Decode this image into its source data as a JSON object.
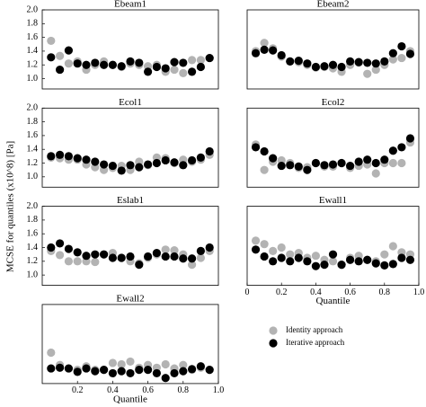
{
  "ylabel": "MCSE for quantiles (x10^8) [Pa]",
  "chart_data": [
    {
      "type": "scatter",
      "title": "Ebeam1",
      "x": [
        0.05,
        0.1,
        0.15,
        0.2,
        0.25,
        0.3,
        0.35,
        0.4,
        0.45,
        0.5,
        0.55,
        0.6,
        0.65,
        0.7,
        0.75,
        0.8,
        0.85,
        0.9,
        0.95
      ],
      "series": [
        {
          "name": "Identity approach",
          "color": "#b3b3b3",
          "values": [
            1.55,
            1.33,
            1.22,
            1.25,
            1.13,
            1.2,
            1.25,
            1.2,
            1.17,
            1.22,
            1.2,
            1.18,
            1.2,
            1.1,
            1.13,
            1.08,
            1.27,
            1.27,
            1.3
          ]
        },
        {
          "name": "Iterative approach",
          "color": "#000000",
          "values": [
            1.31,
            1.13,
            1.41,
            1.22,
            1.2,
            1.23,
            1.2,
            1.2,
            1.18,
            1.25,
            1.23,
            1.1,
            1.17,
            1.15,
            1.24,
            1.23,
            1.1,
            1.17,
            1.3
          ]
        }
      ],
      "xlim": [
        0,
        1.0
      ],
      "ylim": [
        0.85,
        2.0
      ],
      "yticks": [
        {
          "value": 1,
          "label": "1.0"
        },
        1.2,
        1.4,
        1.6,
        1.8,
        {
          "value": 2,
          "label": "2.0"
        }
      ]
    },
    {
      "type": "scatter",
      "title": "Ebeam2",
      "x": [
        0.05,
        0.1,
        0.15,
        0.2,
        0.25,
        0.3,
        0.35,
        0.4,
        0.45,
        0.5,
        0.55,
        0.6,
        0.65,
        0.7,
        0.75,
        0.8,
        0.85,
        0.9,
        0.95
      ],
      "series": [
        {
          "name": "Identity approach",
          "color": "#b3b3b3",
          "values": [
            1.4,
            1.52,
            1.44,
            1.32,
            1.25,
            1.24,
            1.2,
            1.16,
            1.17,
            1.15,
            1.1,
            1.2,
            1.23,
            1.07,
            1.13,
            1.2,
            1.28,
            1.3,
            1.4
          ]
        },
        {
          "name": "Iterative approach",
          "color": "#000000",
          "values": [
            1.37,
            1.42,
            1.41,
            1.34,
            1.25,
            1.26,
            1.22,
            1.17,
            1.18,
            1.2,
            1.17,
            1.25,
            1.24,
            1.23,
            1.22,
            1.25,
            1.37,
            1.47,
            1.36
          ]
        }
      ],
      "xlim": [
        0,
        1.0
      ],
      "ylim": [
        0.85,
        2.0
      ]
    },
    {
      "type": "scatter",
      "title": "Ecol1",
      "x": [
        0.05,
        0.1,
        0.15,
        0.2,
        0.25,
        0.3,
        0.35,
        0.4,
        0.45,
        0.5,
        0.55,
        0.6,
        0.65,
        0.7,
        0.75,
        0.8,
        0.85,
        0.9,
        0.95
      ],
      "series": [
        {
          "name": "Identity approach",
          "color": "#b3b3b3",
          "values": [
            1.28,
            1.27,
            1.25,
            1.25,
            1.18,
            1.14,
            1.1,
            1.13,
            1.16,
            1.1,
            1.22,
            1.17,
            1.28,
            1.27,
            1.2,
            1.25,
            1.22,
            1.25,
            1.32
          ]
        },
        {
          "name": "Iterative approach",
          "color": "#000000",
          "values": [
            1.3,
            1.32,
            1.3,
            1.27,
            1.25,
            1.22,
            1.18,
            1.16,
            1.09,
            1.17,
            1.14,
            1.18,
            1.2,
            1.24,
            1.21,
            1.17,
            1.24,
            1.28,
            1.37
          ]
        }
      ],
      "xlim": [
        0,
        1.0
      ],
      "ylim": [
        0.85,
        2.0
      ],
      "yticks": [
        {
          "value": 1,
          "label": "1.0"
        },
        1.2,
        1.4,
        1.6,
        1.8,
        {
          "value": 2,
          "label": "2.0"
        }
      ]
    },
    {
      "type": "scatter",
      "title": "Ecol2",
      "x": [
        0.05,
        0.1,
        0.15,
        0.2,
        0.25,
        0.3,
        0.35,
        0.4,
        0.45,
        0.5,
        0.55,
        0.6,
        0.65,
        0.7,
        0.75,
        0.8,
        0.85,
        0.9,
        0.95
      ],
      "series": [
        {
          "name": "Identity approach",
          "color": "#b3b3b3",
          "values": [
            1.47,
            1.1,
            1.22,
            1.24,
            1.2,
            1.13,
            1.14,
            1.2,
            1.15,
            1.15,
            1.2,
            1.13,
            1.16,
            1.18,
            1.05,
            1.2,
            1.2,
            1.2,
            1.5
          ]
        },
        {
          "name": "Iterative approach",
          "color": "#000000",
          "values": [
            1.43,
            1.37,
            1.27,
            1.16,
            1.17,
            1.15,
            1.1,
            1.2,
            1.17,
            1.18,
            1.2,
            1.16,
            1.22,
            1.25,
            1.2,
            1.25,
            1.38,
            1.43,
            1.56
          ]
        }
      ],
      "xlim": [
        0,
        1.0
      ],
      "ylim": [
        0.85,
        2.0
      ]
    },
    {
      "type": "scatter",
      "title": "Eslab1",
      "x": [
        0.05,
        0.1,
        0.15,
        0.2,
        0.25,
        0.3,
        0.35,
        0.4,
        0.45,
        0.5,
        0.55,
        0.6,
        0.65,
        0.7,
        0.75,
        0.8,
        0.85,
        0.9,
        0.95
      ],
      "series": [
        {
          "name": "Identity approach",
          "color": "#b3b3b3",
          "values": [
            1.35,
            1.29,
            1.2,
            1.2,
            1.2,
            1.19,
            1.3,
            1.32,
            1.25,
            1.2,
            1.17,
            1.25,
            1.3,
            1.37,
            1.36,
            1.3,
            1.15,
            1.25,
            1.35
          ]
        },
        {
          "name": "Iterative approach",
          "color": "#000000",
          "values": [
            1.4,
            1.46,
            1.38,
            1.33,
            1.28,
            1.3,
            1.3,
            1.25,
            1.25,
            1.27,
            1.15,
            1.27,
            1.32,
            1.27,
            1.27,
            1.24,
            1.24,
            1.35,
            1.4
          ]
        }
      ],
      "xlim": [
        0,
        1.0
      ],
      "ylim": [
        0.85,
        2.0
      ],
      "yticks": [
        {
          "value": 1,
          "label": "1.0"
        },
        1.2,
        1.4,
        1.6,
        1.8,
        {
          "value": 2,
          "label": "2.0"
        }
      ]
    },
    {
      "type": "scatter",
      "title": "Ewall1",
      "xlabel": "Quantile",
      "x": [
        0.05,
        0.1,
        0.15,
        0.2,
        0.25,
        0.3,
        0.35,
        0.4,
        0.45,
        0.5,
        0.55,
        0.6,
        0.65,
        0.7,
        0.75,
        0.8,
        0.85,
        0.9,
        0.95
      ],
      "series": [
        {
          "name": "Identity approach",
          "color": "#b3b3b3",
          "values": [
            1.5,
            1.45,
            1.35,
            1.4,
            1.3,
            1.32,
            1.25,
            1.28,
            1.22,
            1.2,
            1.15,
            1.25,
            1.28,
            1.22,
            1.2,
            1.3,
            1.42,
            1.33,
            1.3
          ]
        },
        {
          "name": "Iterative approach",
          "color": "#000000",
          "values": [
            1.37,
            1.27,
            1.2,
            1.25,
            1.2,
            1.25,
            1.2,
            1.13,
            1.15,
            1.3,
            1.15,
            1.22,
            1.2,
            1.22,
            1.17,
            1.14,
            1.16,
            1.25,
            1.22
          ]
        }
      ],
      "xlim": [
        0,
        1.0
      ],
      "ylim": [
        0.85,
        2.0
      ],
      "xticks": [
        0,
        0.2,
        0.4,
        0.6,
        0.8,
        {
          "value": 1,
          "label": "1.0"
        }
      ]
    },
    {
      "type": "scatter",
      "title": "Ewall2",
      "xlabel": "Quantile",
      "x": [
        0.05,
        0.1,
        0.15,
        0.2,
        0.25,
        0.3,
        0.35,
        0.4,
        0.45,
        0.5,
        0.55,
        0.6,
        0.65,
        0.7,
        0.75,
        0.8,
        0.85,
        0.9,
        0.95
      ],
      "series": [
        {
          "name": "Identity approach",
          "color": "#b3b3b3",
          "values": [
            1.3,
            1.12,
            1.07,
            1.05,
            1.1,
            1.05,
            1.05,
            1.15,
            1.13,
            1.17,
            1.08,
            1.12,
            1.08,
            1.13,
            1.07,
            1.12,
            1.05,
            1.08,
            1.05
          ]
        },
        {
          "name": "Iterative approach",
          "color": "#000000",
          "values": [
            1.07,
            1.08,
            1.07,
            1.02,
            1.07,
            1.03,
            1.05,
            1.0,
            1.03,
            1.0,
            1.05,
            1.05,
            1.0,
            0.93,
            1.0,
            1.03,
            1.06,
            1.1,
            1.05
          ]
        }
      ],
      "xlim": [
        0,
        1.0
      ],
      "ylim": [
        0.85,
        2.0
      ],
      "xticks": [
        0.2,
        0.4,
        0.6,
        0.8,
        {
          "value": 1,
          "label": "1.0"
        }
      ]
    }
  ]
}
